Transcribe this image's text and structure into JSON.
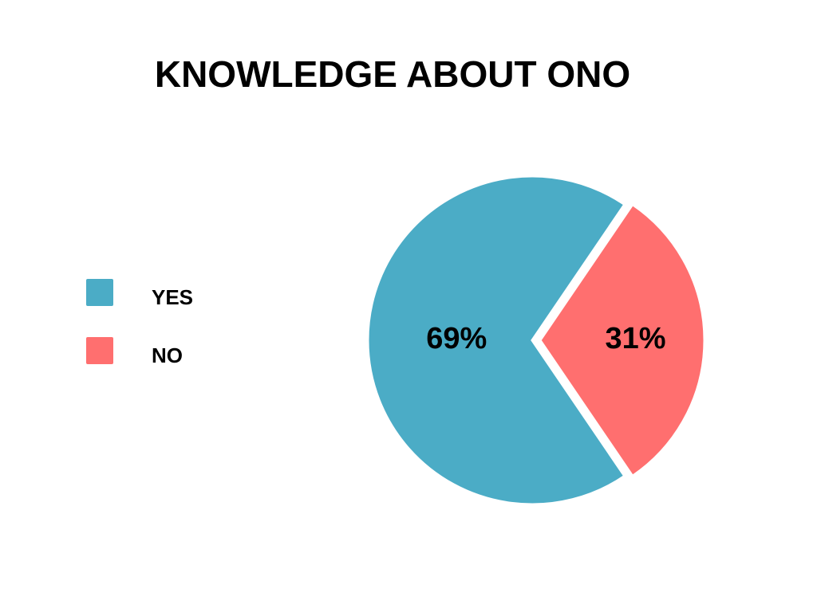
{
  "chart_data": {
    "type": "pie",
    "title": "KNOWLEDGE ABOUT ONO",
    "categories": [
      "YES",
      "NO"
    ],
    "values": [
      69,
      31
    ],
    "value_labels": [
      "69%",
      "31%"
    ],
    "colors": [
      "#4bacc6",
      "#ff6f6f"
    ],
    "legend": "left"
  }
}
